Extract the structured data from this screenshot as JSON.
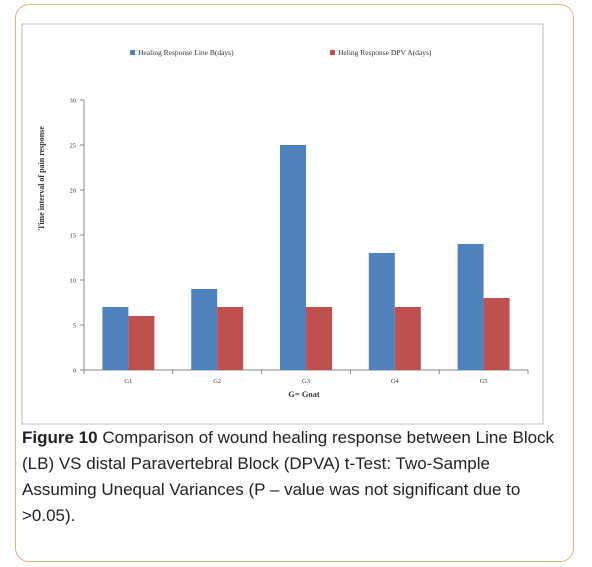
{
  "figure": {
    "caption_label": "Figure 10",
    "caption_text": " Comparison of wound healing response between Line Block (LB) VS distal Paravertebral Block (DPVA) t-Test: Two-Sample Assuming Unequal Variances (P – value was not significant due to >0.05)."
  },
  "chart_data": {
    "type": "bar",
    "categories": [
      "G1",
      "G2",
      "G3",
      "G4",
      "G5"
    ],
    "series": [
      {
        "name": "Healing Response Line B(days)",
        "values": [
          7,
          9,
          25,
          13,
          14
        ],
        "color": "#4f81bd"
      },
      {
        "name": "Heling Response DPV A(days)",
        "values": [
          6,
          7,
          7,
          7,
          8
        ],
        "color": "#c0504d"
      }
    ],
    "xlabel": "G= Goat",
    "ylabel": "Time interval of pain response",
    "ylim": [
      0,
      30
    ],
    "yticks": [
      0,
      5,
      10,
      15,
      20,
      25,
      30
    ],
    "grid": false,
    "legend_position": "top"
  }
}
